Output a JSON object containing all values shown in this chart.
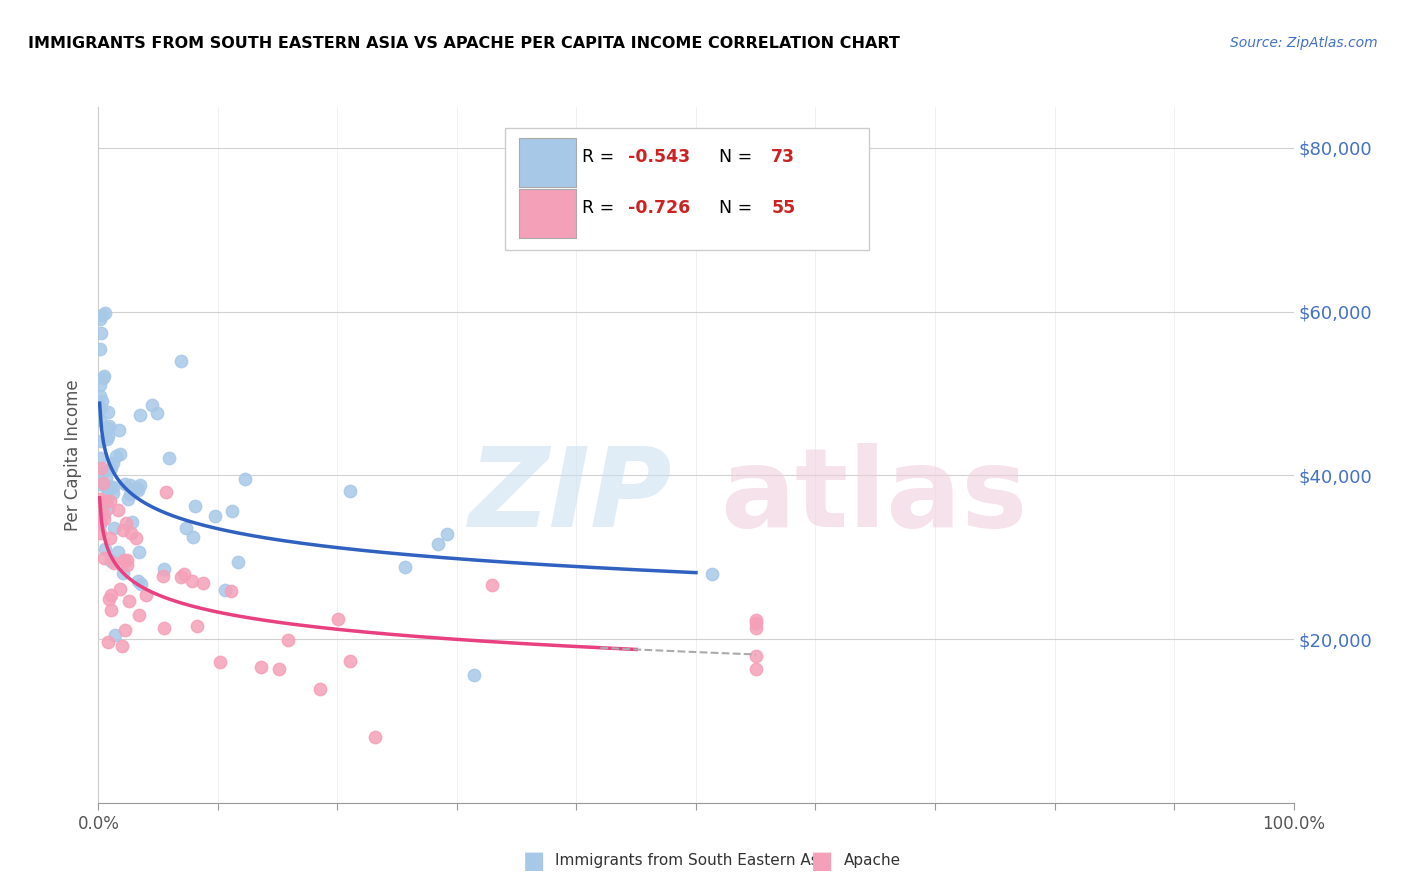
{
  "title": "IMMIGRANTS FROM SOUTH EASTERN ASIA VS APACHE PER CAPITA INCOME CORRELATION CHART",
  "source": "Source: ZipAtlas.com",
  "ylabel": "Per Capita Income",
  "legend_blue_r": "-0.543",
  "legend_blue_n": "73",
  "legend_pink_r": "-0.726",
  "legend_pink_n": "55",
  "blue_color": "#a8c8e8",
  "pink_color": "#f4a0b8",
  "blue_line_color": "#3060c0",
  "pink_line_color": "#e84080",
  "y_ticks": [
    0,
    20000,
    40000,
    60000,
    80000
  ],
  "y_tick_labels": [
    "",
    "$20,000",
    "$40,000",
    "$60,000",
    "$80,000"
  ],
  "xlim": [
    0.0,
    1.0
  ],
  "ylim": [
    0,
    85000
  ],
  "blue_n": 73,
  "pink_n": 55,
  "blue_r": -0.543,
  "pink_r": -0.726
}
